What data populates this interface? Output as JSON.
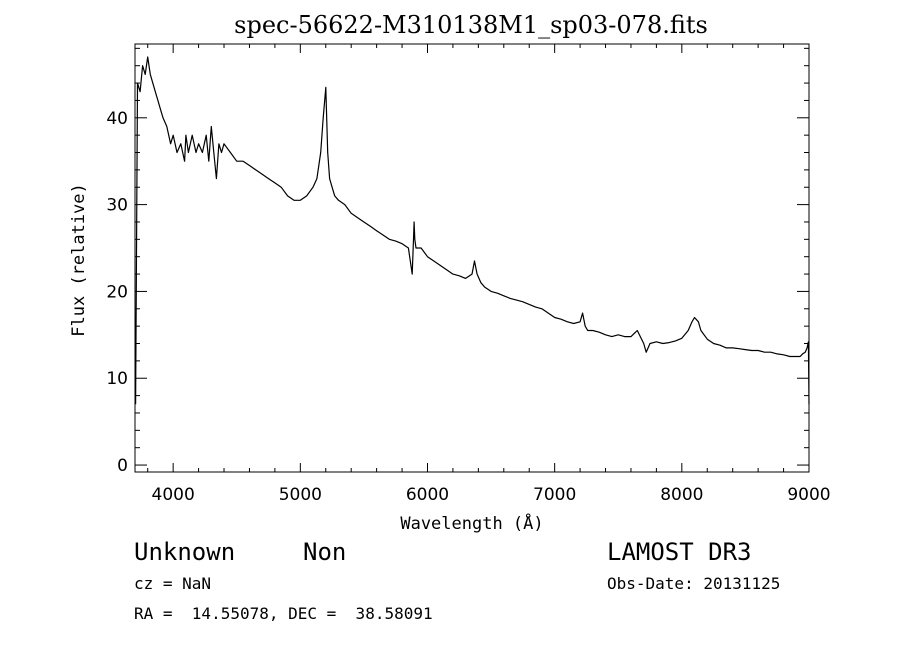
{
  "chart_data": {
    "type": "line",
    "title": "spec-56622-M310138M1_sp03-078.fits",
    "xlabel": "Wavelength (Å)",
    "ylabel": "Flux (relative)",
    "xlim": [
      3700,
      9000
    ],
    "ylim": [
      -0.8,
      48.5
    ],
    "x_ticks": [
      4000,
      5000,
      6000,
      7000,
      8000,
      9000
    ],
    "y_ticks": [
      0,
      10,
      20,
      30,
      40
    ],
    "grid": false,
    "series": [
      {
        "x": [
          3705,
          3720,
          3740,
          3760,
          3780,
          3800,
          3820,
          3840,
          3860,
          3880,
          3900,
          3920,
          3950,
          3980,
          4000,
          4030,
          4060,
          4090,
          4100,
          4120,
          4150,
          4180,
          4200,
          4230,
          4260,
          4280,
          4300,
          4320,
          4340,
          4360,
          4380,
          4400,
          4450,
          4500,
          4550,
          4600,
          4650,
          4700,
          4750,
          4800,
          4850,
          4900,
          4950,
          5000,
          5050,
          5100,
          5130,
          5160,
          5180,
          5200,
          5215,
          5230,
          5250,
          5270,
          5300,
          5350,
          5400,
          5450,
          5500,
          5550,
          5600,
          5650,
          5700,
          5750,
          5800,
          5850,
          5880,
          5890,
          5895,
          5900,
          5910,
          5950,
          6000,
          6050,
          6100,
          6150,
          6200,
          6250,
          6300,
          6350,
          6370,
          6390,
          6420,
          6450,
          6500,
          6550,
          6600,
          6650,
          6700,
          6750,
          6800,
          6850,
          6900,
          6950,
          7000,
          7050,
          7100,
          7150,
          7200,
          7220,
          7240,
          7260,
          7300,
          7350,
          7400,
          7450,
          7500,
          7550,
          7600,
          7650,
          7700,
          7720,
          7750,
          7800,
          7850,
          7900,
          7950,
          8000,
          8050,
          8080,
          8100,
          8130,
          8150,
          8200,
          8250,
          8300,
          8350,
          8400,
          8450,
          8500,
          8550,
          8600,
          8650,
          8700,
          8750,
          8800,
          8850,
          8900,
          8930,
          8950,
          8970,
          8985,
          8995,
          9000
        ],
        "y": [
          7,
          44,
          43,
          46,
          45,
          47,
          45,
          44,
          43,
          42,
          41,
          40,
          39,
          37,
          38,
          36,
          37,
          35,
          38,
          36,
          38,
          36,
          37,
          36,
          38,
          35,
          39,
          36,
          33,
          37,
          36,
          37,
          36,
          35,
          35,
          34.5,
          34,
          33.5,
          33,
          32.5,
          32,
          31,
          30.5,
          30.5,
          31,
          32,
          33,
          36,
          40,
          43.5,
          36,
          33,
          32,
          31,
          30.5,
          30,
          29,
          28.5,
          28,
          27.5,
          27,
          26.5,
          26,
          25.8,
          25.5,
          25,
          22,
          26,
          28,
          26,
          25,
          25,
          24,
          23.5,
          23,
          22.5,
          22,
          21.8,
          21.5,
          22,
          23.5,
          22,
          21,
          20.5,
          20,
          19.8,
          19.5,
          19.2,
          19,
          18.8,
          18.5,
          18.2,
          18,
          17.5,
          17,
          16.8,
          16.5,
          16.3,
          16.5,
          17.5,
          16,
          15.5,
          15.5,
          15.3,
          15,
          14.8,
          15,
          14.8,
          14.8,
          15.5,
          14,
          13,
          14,
          14.2,
          14,
          14.1,
          14.3,
          14.6,
          15.5,
          16.5,
          17,
          16.5,
          15.5,
          14.5,
          14,
          13.8,
          13.5,
          13.5,
          13.4,
          13.3,
          13.2,
          13.2,
          13,
          13,
          12.8,
          12.7,
          12.5,
          12.5,
          12.5,
          12.8,
          13,
          13.5,
          14.2,
          7
        ]
      }
    ]
  },
  "footer": {
    "object_class": "Unknown",
    "object_subclass": "Non",
    "survey": "LAMOST DR3",
    "cz": "cz = NaN",
    "obs_date": "Obs-Date: 20131125",
    "coords": "RA =  14.55078, DEC =  38.58091"
  }
}
